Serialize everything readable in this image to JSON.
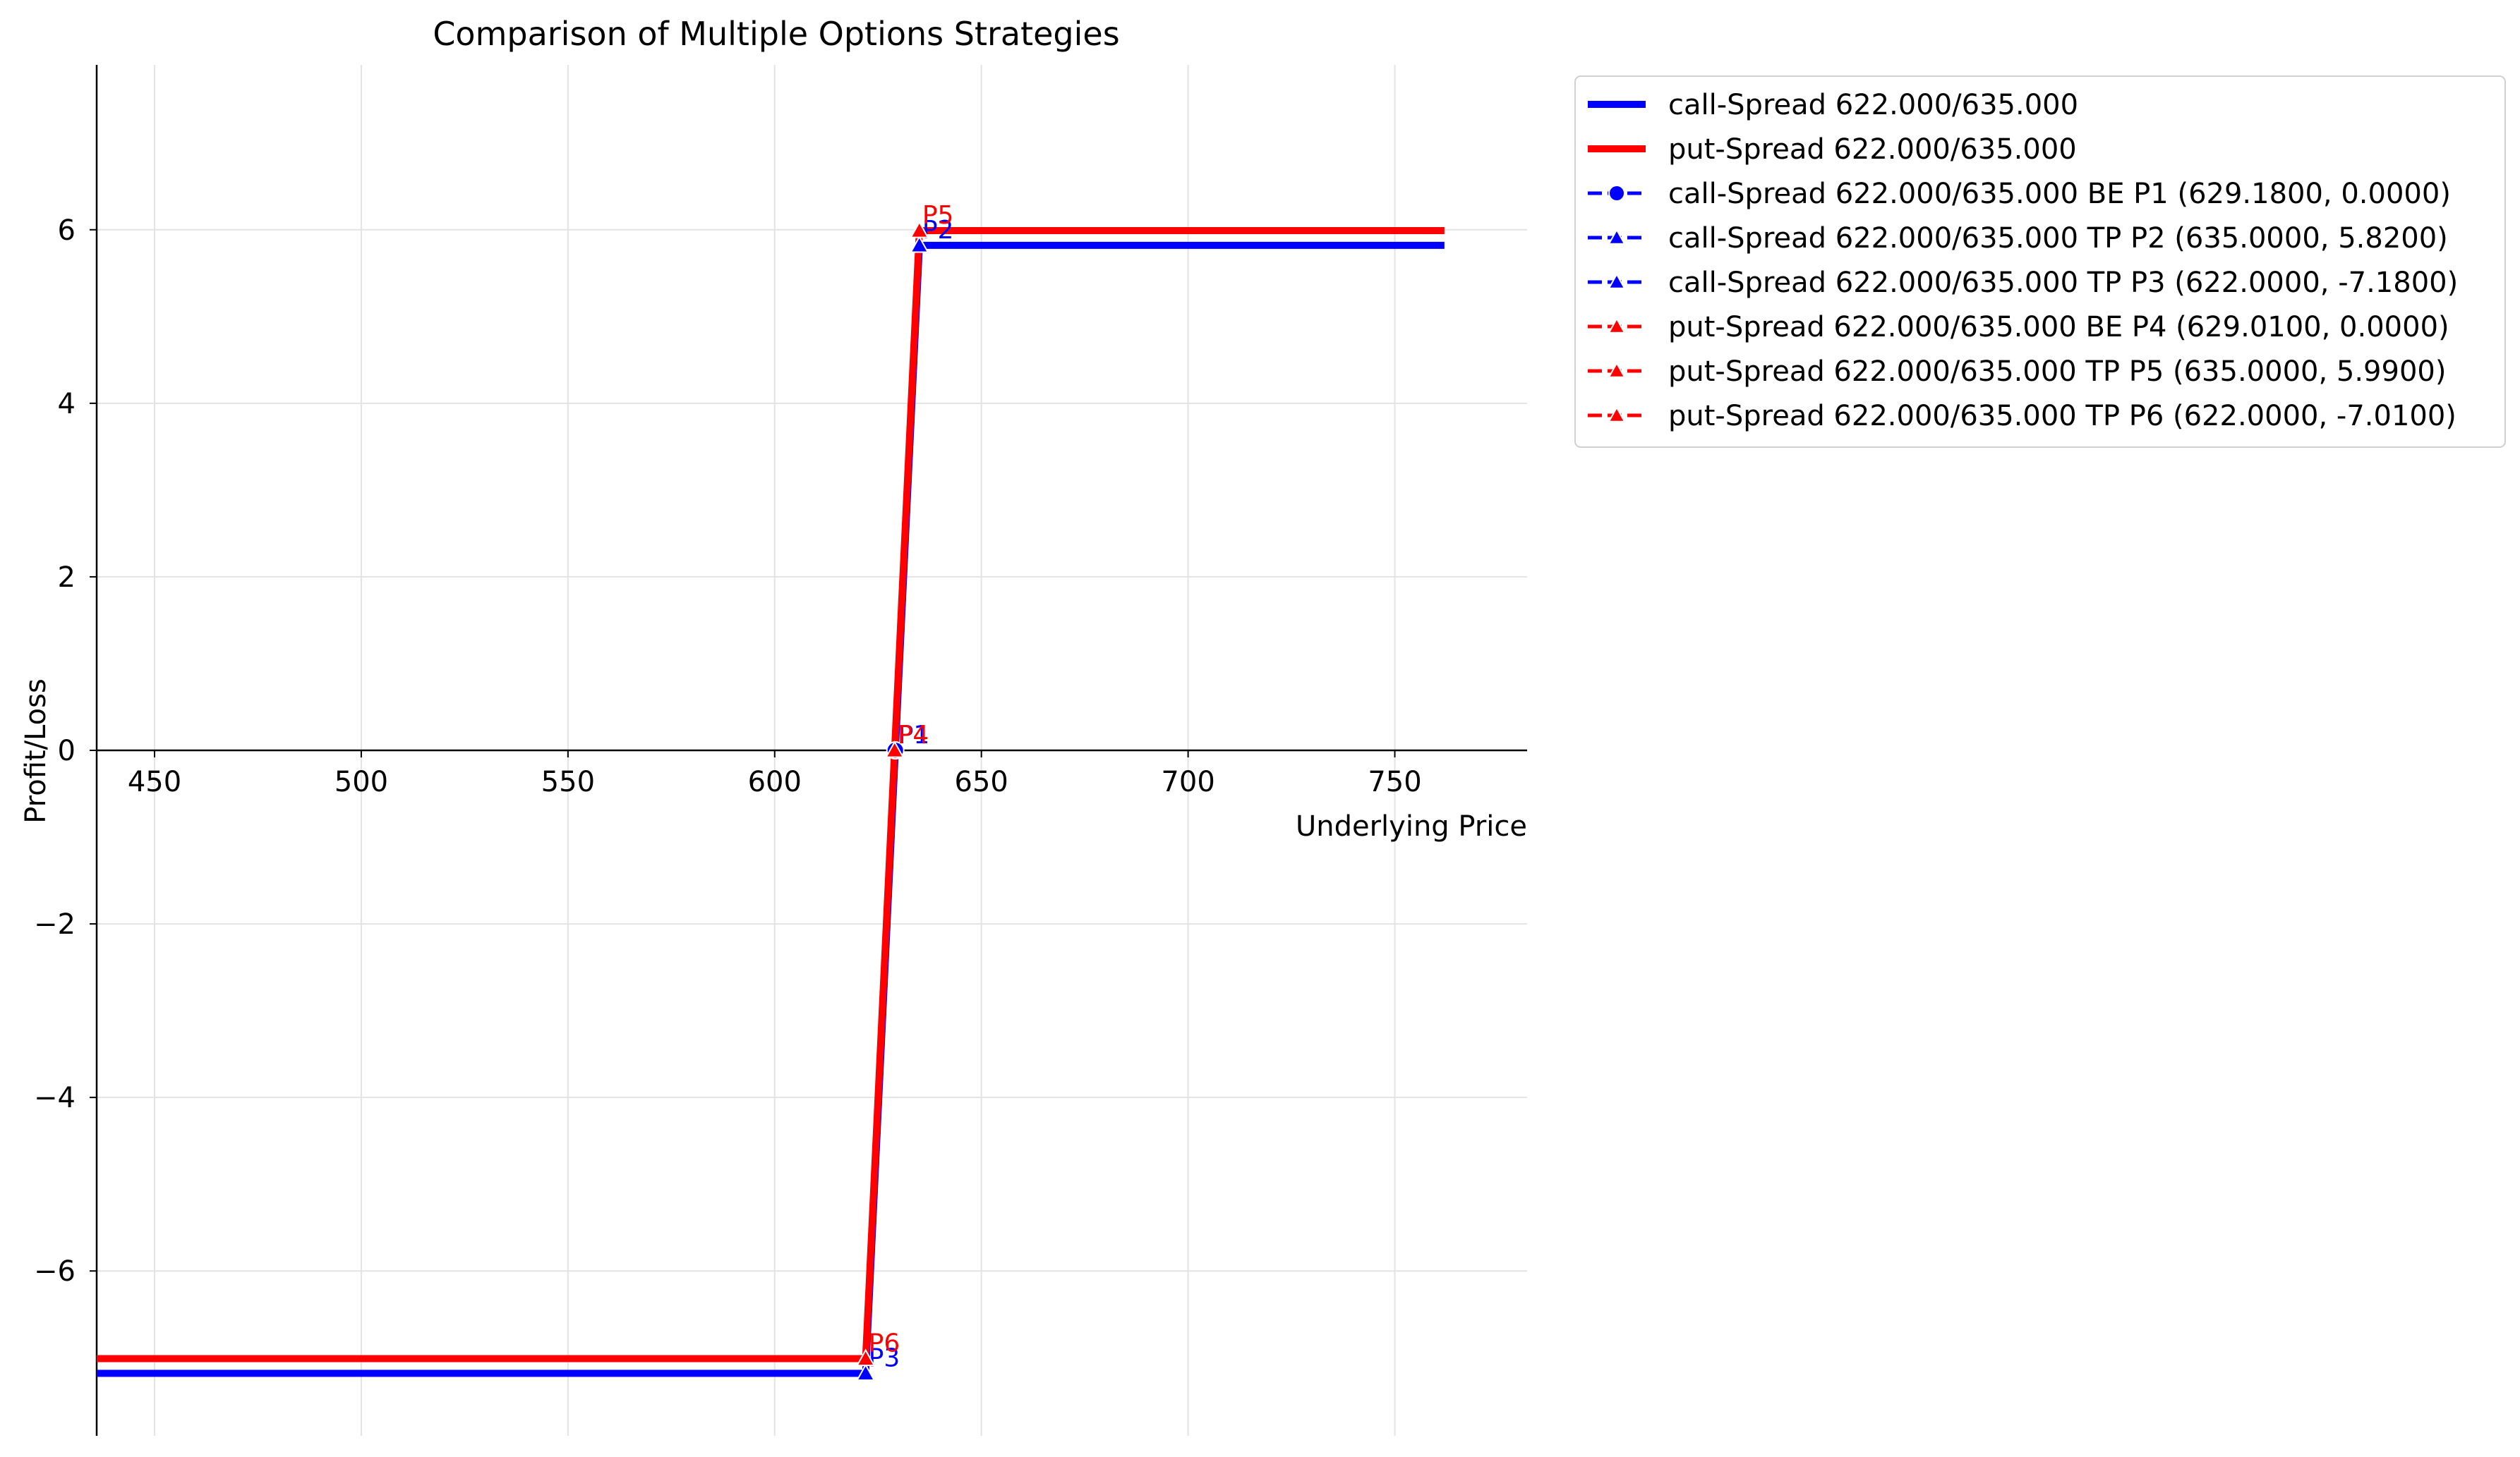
{
  "chart_data": {
    "type": "line",
    "title": "Comparison of Multiple Options Strategies",
    "xlabel": "Underlying Price",
    "ylabel": "Profit/Loss",
    "xlim": [
      436,
      782
    ],
    "ylim": [
      -7.9,
      7.9
    ],
    "xticks": [
      450,
      500,
      550,
      600,
      650,
      700,
      750
    ],
    "xtick_labels": [
      "450",
      "500",
      "550",
      "600",
      "650",
      "700",
      "750"
    ],
    "yticks": [
      -6,
      -4,
      -2,
      0,
      2,
      4,
      6
    ],
    "ytick_labels": [
      "−6",
      "−4",
      "−2",
      "0",
      "2",
      "4",
      "6"
    ],
    "grid": true,
    "legend_position": "outside-upper-right",
    "series": [
      {
        "name": "call-Spread 622.000/635.000",
        "color": "#0000ff",
        "x": [
          436,
          622,
          635,
          762
        ],
        "y": [
          -7.18,
          -7.18,
          5.82,
          5.82
        ]
      },
      {
        "name": "put-Spread 622.000/635.000",
        "color": "#ff0000",
        "x": [
          436,
          622,
          635,
          762
        ],
        "y": [
          -7.01,
          -7.01,
          5.99,
          5.99
        ]
      }
    ],
    "points": [
      {
        "legend": "call-Spread 622.000/635.000 BE P1 (629.1800, 0.0000)",
        "tag": "P1",
        "x": 629.18,
        "y": 0.0,
        "marker": "circle",
        "color": "#0000ff"
      },
      {
        "legend": "call-Spread 622.000/635.000 TP P2 (635.0000, 5.8200)",
        "tag": "P2",
        "x": 635.0,
        "y": 5.82,
        "marker": "triangle",
        "color": "#0000ff"
      },
      {
        "legend": "call-Spread 622.000/635.000 TP P3 (622.0000, -7.1800)",
        "tag": "P3",
        "x": 622.0,
        "y": -7.18,
        "marker": "triangle",
        "color": "#0000ff"
      },
      {
        "legend": "put-Spread 622.000/635.000 BE P4 (629.0100, 0.0000)",
        "tag": "P4",
        "x": 629.01,
        "y": 0.0,
        "marker": "triangle",
        "color": "#ff0000"
      },
      {
        "legend": "put-Spread 622.000/635.000 TP P5 (635.0000, 5.9900)",
        "tag": "P5",
        "x": 635.0,
        "y": 5.99,
        "marker": "triangle",
        "color": "#ff0000"
      },
      {
        "legend": "put-Spread 622.000/635.000 TP P6 (622.0000, -7.0100)",
        "tag": "P6",
        "x": 622.0,
        "y": -7.01,
        "marker": "triangle",
        "color": "#ff0000"
      }
    ]
  }
}
